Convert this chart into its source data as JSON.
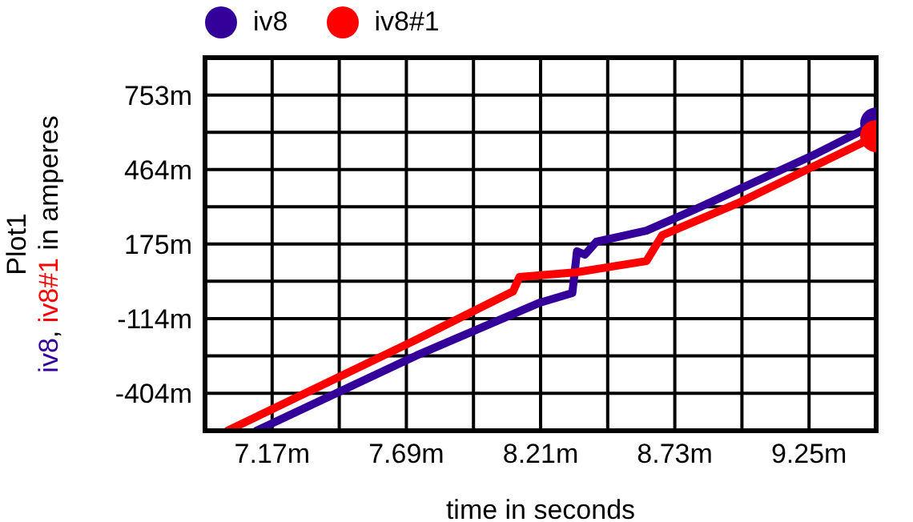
{
  "chart_data": {
    "type": "line",
    "xlabel": "time in seconds",
    "ylabel": "Plot1\niv8, iv8#1 in amperes",
    "xlim": [
      6.91,
      9.51
    ],
    "ylim": [
      -549,
      898
    ],
    "xticks": [
      {
        "value": 7.17,
        "label": "7.17m"
      },
      {
        "value": 7.43,
        "label": null
      },
      {
        "value": 7.69,
        "label": "7.69m"
      },
      {
        "value": 7.95,
        "label": null
      },
      {
        "value": 8.21,
        "label": "8.21m"
      },
      {
        "value": 8.47,
        "label": null
      },
      {
        "value": 8.73,
        "label": "8.73m"
      },
      {
        "value": 8.99,
        "label": null
      },
      {
        "value": 9.25,
        "label": "9.25m"
      }
    ],
    "yticks": [
      {
        "value": -404,
        "label": "-404m"
      },
      {
        "value": -259,
        "label": null
      },
      {
        "value": -114,
        "label": "-114m"
      },
      {
        "value": 30.5,
        "label": null
      },
      {
        "value": 175,
        "label": "175m"
      },
      {
        "value": 319.5,
        "label": null
      },
      {
        "value": 464,
        "label": "464m"
      },
      {
        "value": 608.5,
        "label": null
      },
      {
        "value": 753,
        "label": "753m"
      }
    ],
    "grid": true,
    "legend": "top",
    "marker": "none",
    "line_style": "solid",
    "series": [
      {
        "name": "iv8",
        "color": "#330099",
        "x": [
          7.109,
          7.73,
          8.208,
          8.333,
          8.351,
          8.382,
          8.426,
          8.62,
          8.805,
          9.265,
          9.51
        ],
        "values": [
          -549,
          -257,
          -52,
          -15,
          147,
          134,
          184,
          227,
          308,
          519,
          643
        ]
      },
      {
        "name": "iv8#1",
        "color": "#ff0000",
        "x": [
          6.997,
          7.73,
          8.103,
          8.128,
          8.351,
          8.62,
          8.681,
          8.973,
          9.51
        ],
        "values": [
          -549,
          -195,
          -9,
          47,
          66,
          109,
          209,
          333,
          594
        ]
      }
    ]
  }
}
